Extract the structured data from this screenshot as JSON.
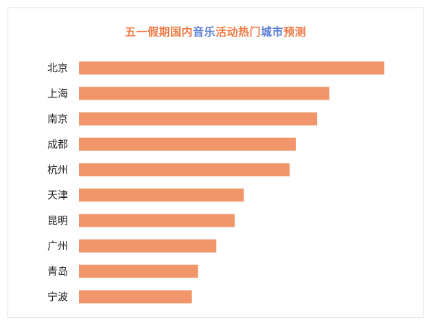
{
  "chart_data": {
    "type": "bar",
    "orientation": "horizontal",
    "title": "五一假期国内音乐活动热门城市预测",
    "title_parts": [
      {
        "text": "五一假期国内",
        "color": "#ee7a43"
      },
      {
        "text": "音乐",
        "color": "#5b7fd6"
      },
      {
        "text": "活动热门",
        "color": "#ee7a43"
      },
      {
        "text": "城市",
        "color": "#5b7fd6"
      },
      {
        "text": "预测",
        "color": "#ee7a43"
      }
    ],
    "categories": [
      "北京",
      "上海",
      "南京",
      "成都",
      "杭州",
      "天津",
      "昆明",
      "广州",
      "青岛",
      "宁波"
    ],
    "values": [
      100,
      82,
      78,
      71,
      69,
      54,
      51,
      45,
      39,
      37
    ],
    "xlim": [
      0,
      100
    ],
    "bar_color": "#f0966a",
    "grid": false,
    "legend": "none",
    "axis_visible": false
  }
}
